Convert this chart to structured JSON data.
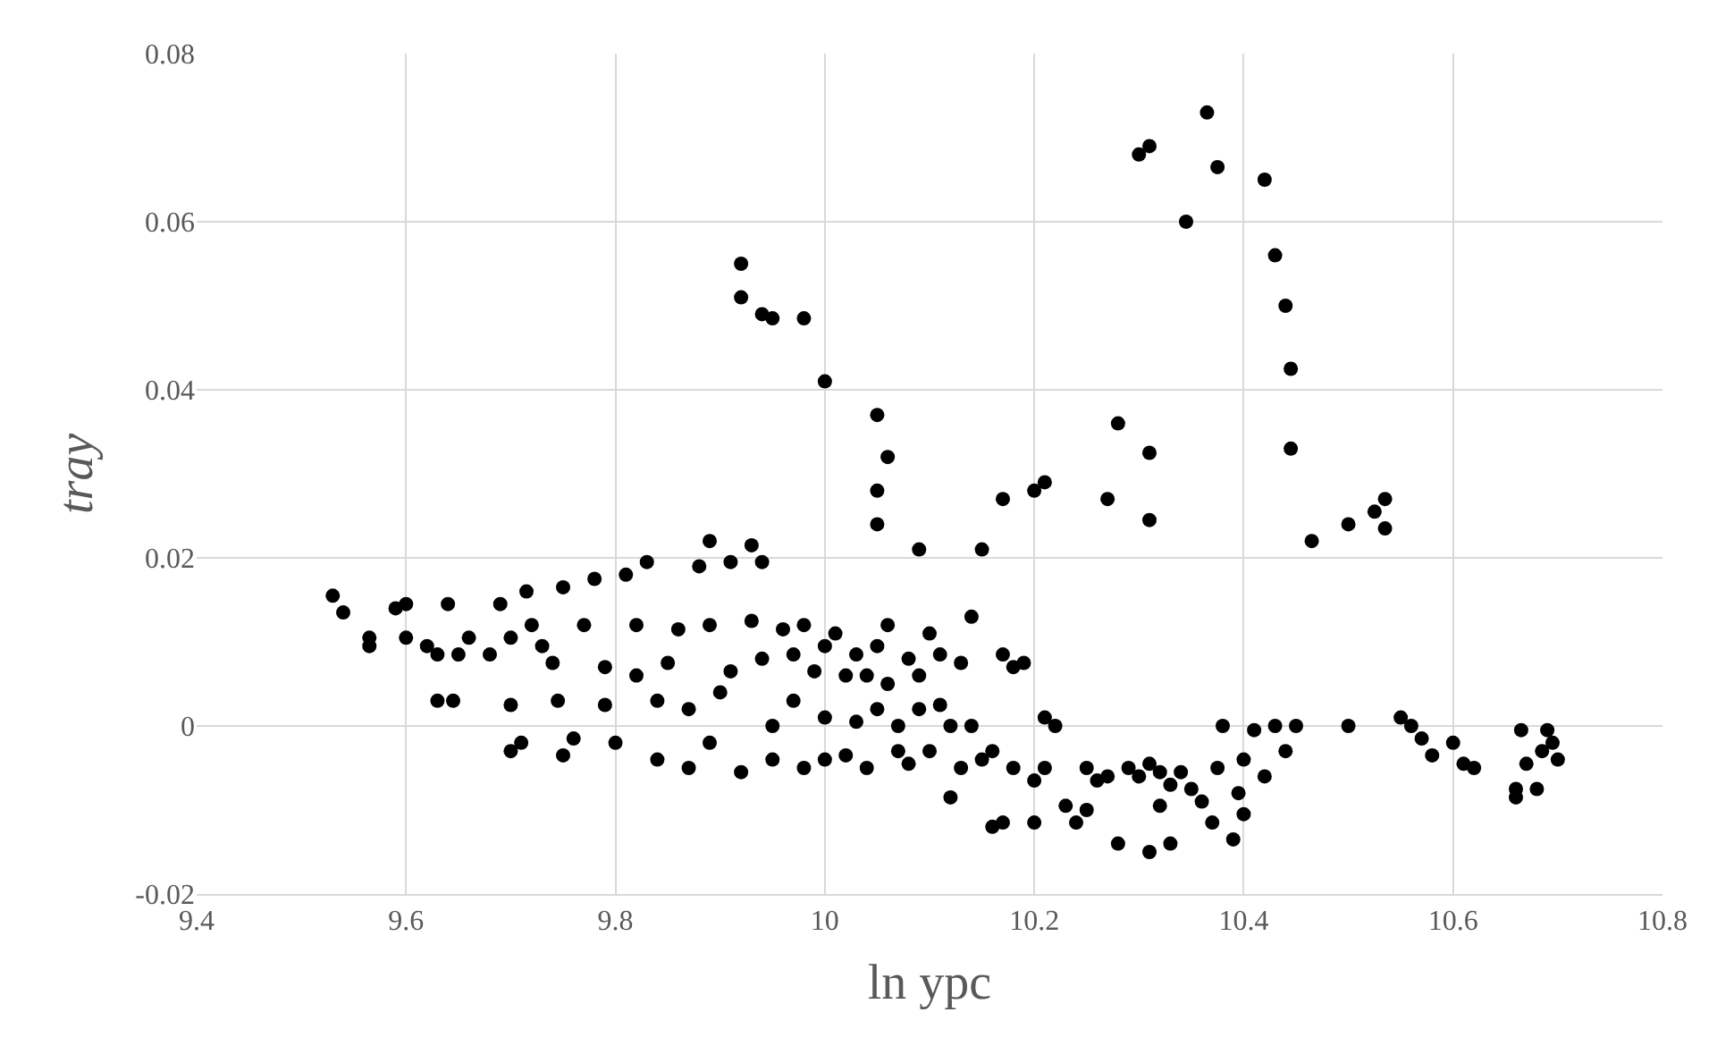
{
  "chart_data": {
    "type": "scatter",
    "xlabel": "ln ypc",
    "ylabel": "tray",
    "xlim": [
      9.4,
      10.8
    ],
    "xticks": [
      9.4,
      9.6,
      9.8,
      10,
      10.2,
      10.4,
      10.6,
      10.8
    ],
    "ylim": [
      -0.02,
      0.08
    ],
    "yticks": [
      -0.02,
      0,
      0.02,
      0.04,
      0.06,
      0.08
    ],
    "grid": true,
    "marker": "circle",
    "series": [
      {
        "color": "#000000",
        "x": [
          9.92,
          9.92,
          9.94,
          9.95,
          9.98,
          10.0,
          10.05,
          10.06,
          10.05,
          10.05,
          10.09,
          10.15,
          10.17,
          10.2,
          10.21,
          10.27,
          10.28,
          10.31,
          10.31,
          10.3,
          10.31,
          10.345,
          10.365,
          10.375,
          10.42,
          10.43,
          10.44,
          10.445,
          10.445,
          10.465,
          10.5,
          10.525,
          10.535,
          10.535,
          9.53,
          9.54,
          9.565,
          9.565,
          9.59,
          9.6,
          9.6,
          9.62,
          9.63,
          9.63,
          9.64,
          9.645,
          9.65,
          9.66,
          9.68,
          9.69,
          9.7,
          9.7,
          9.7,
          9.71,
          9.715,
          9.72,
          9.73,
          9.74,
          9.745,
          9.75,
          9.75,
          9.76,
          9.77,
          9.78,
          9.79,
          9.79,
          9.8,
          9.81,
          9.82,
          9.82,
          9.83,
          9.84,
          9.84,
          9.85,
          9.86,
          9.87,
          9.87,
          9.88,
          9.89,
          9.89,
          9.89,
          9.9,
          9.91,
          9.91,
          9.92,
          9.93,
          9.93,
          9.94,
          9.94,
          9.95,
          9.95,
          9.96,
          9.97,
          9.97,
          9.98,
          9.98,
          9.99,
          10.0,
          10.0,
          10.0,
          10.01,
          10.02,
          10.02,
          10.03,
          10.03,
          10.04,
          10.04,
          10.05,
          10.05,
          10.06,
          10.06,
          10.07,
          10.07,
          10.08,
          10.08,
          10.09,
          10.09,
          10.1,
          10.1,
          10.11,
          10.11,
          10.12,
          10.12,
          10.13,
          10.13,
          10.14,
          10.14,
          10.15,
          10.16,
          10.16,
          10.17,
          10.17,
          10.18,
          10.18,
          10.19,
          10.2,
          10.2,
          10.21,
          10.21,
          10.22,
          10.23,
          10.24,
          10.25,
          10.25,
          10.26,
          10.27,
          10.28,
          10.29,
          10.3,
          10.31,
          10.31,
          10.32,
          10.32,
          10.33,
          10.33,
          10.34,
          10.35,
          10.36,
          10.37,
          10.375,
          10.38,
          10.39,
          10.395,
          10.4,
          10.4,
          10.41,
          10.42,
          10.43,
          10.44,
          10.45,
          10.5,
          10.55,
          10.56,
          10.57,
          10.58,
          10.6,
          10.61,
          10.62,
          10.66,
          10.66,
          10.665,
          10.67,
          10.68,
          10.685,
          10.69,
          10.695,
          10.7
        ],
        "values": [
          0.055,
          0.051,
          0.049,
          0.0485,
          0.0485,
          0.041,
          0.037,
          0.032,
          0.028,
          0.024,
          0.021,
          0.021,
          0.027,
          0.028,
          0.029,
          0.027,
          0.036,
          0.0325,
          0.0245,
          0.068,
          0.069,
          0.06,
          0.073,
          0.0665,
          0.065,
          0.056,
          0.05,
          0.0425,
          0.033,
          0.022,
          0.024,
          0.0255,
          0.027,
          0.0235,
          0.0155,
          0.0135,
          0.0105,
          0.0095,
          0.014,
          0.0145,
          0.0105,
          0.0095,
          0.0085,
          0.003,
          0.0145,
          0.003,
          0.0085,
          0.0105,
          0.0085,
          0.0145,
          0.0105,
          0.0025,
          -0.003,
          -0.002,
          0.016,
          0.012,
          0.0095,
          0.0075,
          0.003,
          0.0165,
          -0.0035,
          -0.0015,
          0.012,
          0.0175,
          0.007,
          0.0025,
          -0.002,
          0.018,
          0.012,
          0.006,
          0.0195,
          0.003,
          -0.004,
          0.0075,
          0.0115,
          0.002,
          -0.005,
          0.019,
          0.022,
          0.012,
          -0.002,
          0.004,
          0.0195,
          0.0065,
          -0.0055,
          0.0215,
          0.0125,
          0.0195,
          0.008,
          0.0,
          -0.004,
          0.0115,
          0.0085,
          0.003,
          0.012,
          -0.005,
          0.0065,
          0.0095,
          0.001,
          -0.004,
          0.011,
          0.006,
          -0.0035,
          0.0085,
          0.0005,
          0.006,
          -0.005,
          0.0095,
          0.002,
          0.012,
          0.005,
          -0.003,
          0.0,
          0.008,
          -0.0045,
          0.006,
          0.002,
          0.011,
          -0.003,
          0.0085,
          0.0025,
          -0.0085,
          0.0,
          0.0075,
          -0.005,
          0.013,
          0.0,
          -0.004,
          -0.012,
          -0.003,
          0.0085,
          -0.0115,
          0.007,
          -0.005,
          0.0075,
          -0.0065,
          -0.0115,
          0.001,
          -0.005,
          0.0,
          -0.0095,
          -0.0115,
          -0.005,
          -0.01,
          -0.0065,
          -0.006,
          -0.014,
          -0.005,
          -0.006,
          -0.015,
          -0.0045,
          -0.0095,
          -0.0055,
          -0.014,
          -0.007,
          -0.0055,
          -0.0075,
          -0.009,
          -0.0115,
          -0.005,
          0.0,
          -0.0135,
          -0.008,
          -0.004,
          -0.0105,
          -0.0005,
          -0.006,
          0.0,
          -0.003,
          0.0,
          0.0,
          0.001,
          0.0,
          -0.0015,
          -0.0035,
          -0.002,
          -0.0045,
          -0.005,
          -0.0075,
          -0.0085,
          -0.0005,
          -0.0045,
          -0.0075,
          -0.003,
          -0.0005,
          -0.002,
          -0.004
        ]
      }
    ]
  }
}
